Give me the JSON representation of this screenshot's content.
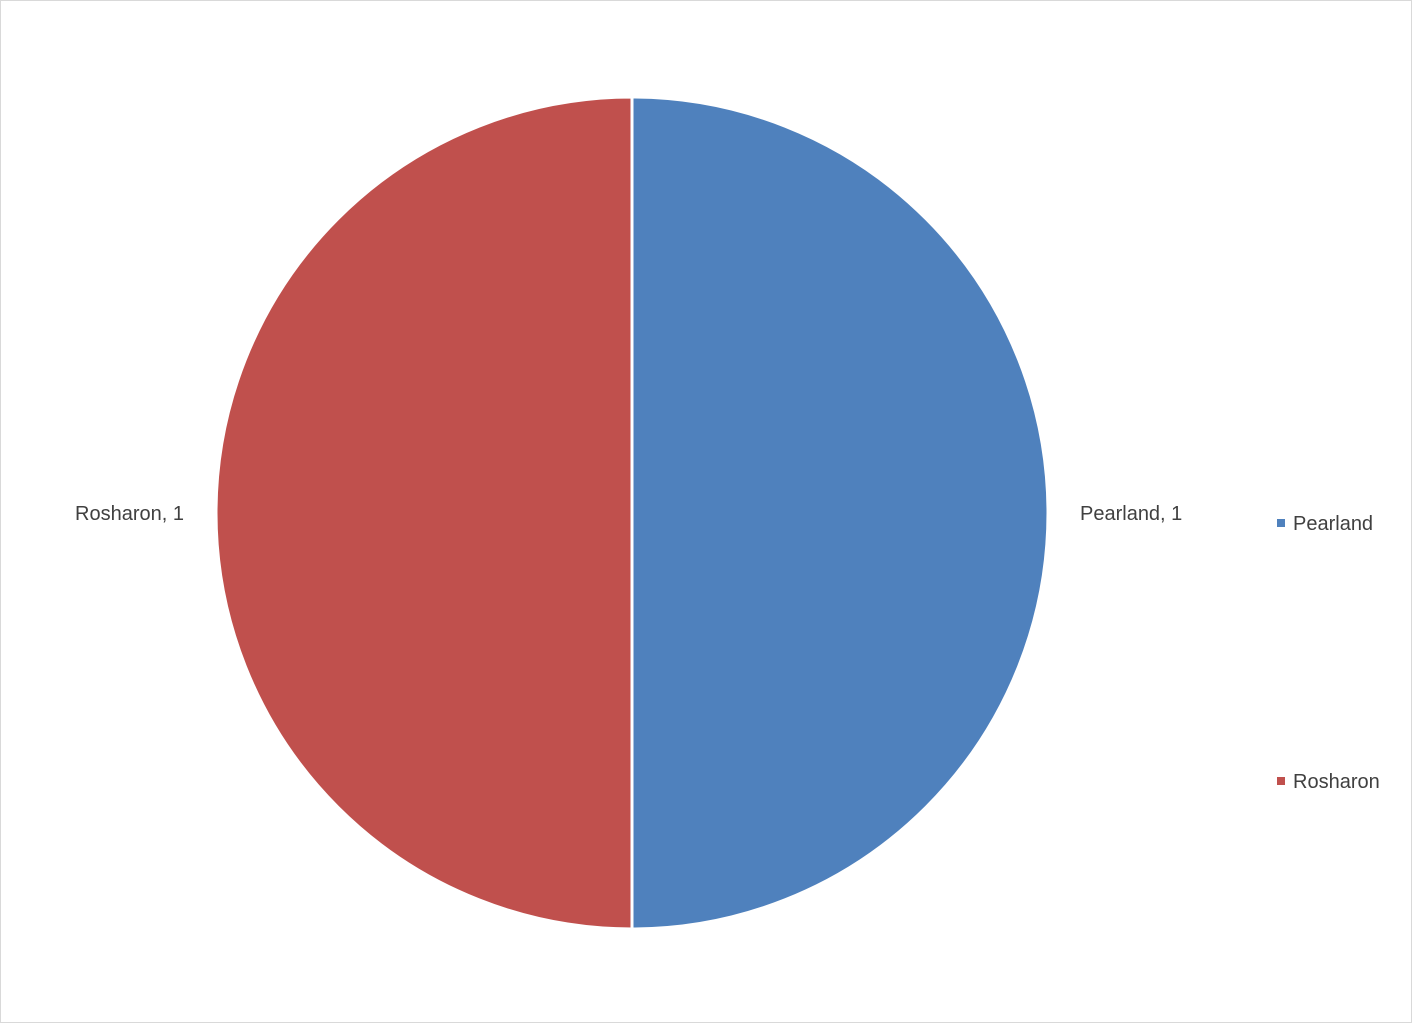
{
  "chart_data": {
    "type": "pie",
    "title": "",
    "categories": [
      "Pearland",
      "Rosharon"
    ],
    "values": [
      1,
      1
    ],
    "colors": [
      "#4f81bd",
      "#c0504d"
    ],
    "data_labels": [
      "Pearland, 1",
      "Rosharon, 1"
    ],
    "legend": {
      "placement": "right",
      "entries": [
        "Pearland",
        "Rosharon"
      ]
    },
    "start_angle_deg": 0,
    "direction": "clockwise"
  }
}
